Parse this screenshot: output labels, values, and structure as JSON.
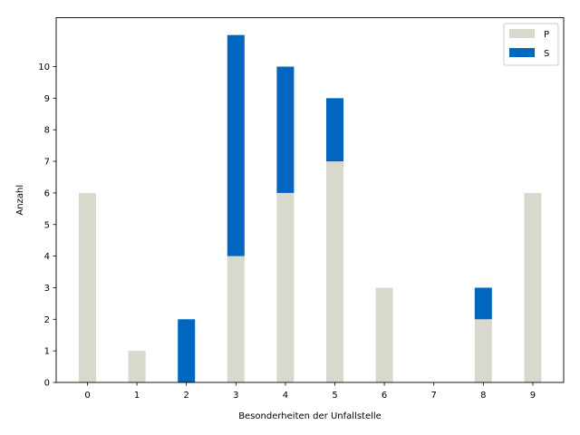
{
  "chart_data": {
    "type": "bar",
    "stacked": true,
    "categories": [
      "0",
      "1",
      "2",
      "3",
      "4",
      "5",
      "6",
      "7",
      "8",
      "9"
    ],
    "series": [
      {
        "name": "P",
        "color": "#d9d8cc",
        "values": [
          6,
          1,
          0,
          4,
          6,
          7,
          3,
          0,
          2,
          6
        ]
      },
      {
        "name": "S",
        "color": "#0066c0",
        "values": [
          0,
          0,
          2,
          7,
          4,
          2,
          0,
          0,
          1,
          0
        ]
      }
    ],
    "xlabel": "Besonderheiten der Unfallstelle",
    "ylabel": "Anzahl",
    "ylim": [
      0,
      11.55
    ],
    "yticks": [
      0,
      1,
      2,
      3,
      4,
      5,
      6,
      7,
      8,
      9,
      10
    ],
    "grid": false,
    "legend_position": "top-right"
  }
}
